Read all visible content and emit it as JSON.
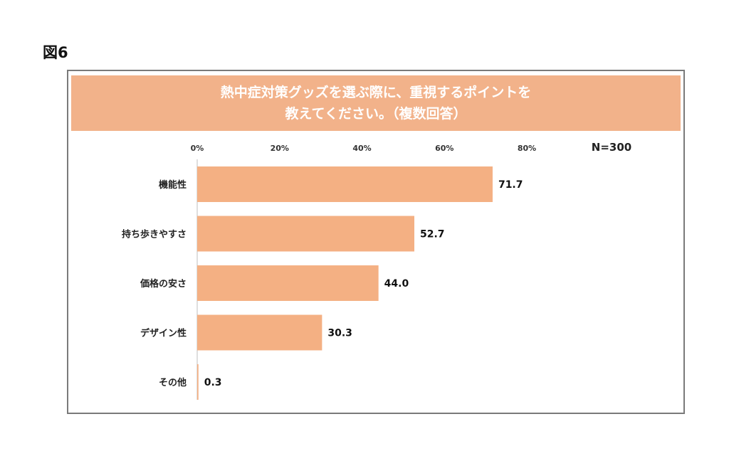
{
  "figure_label": "図6",
  "colors": {
    "bar": "#f4b083",
    "title_band": "#f2b28a",
    "frame": "#7a7a7a"
  },
  "chart_data": {
    "type": "bar",
    "orientation": "horizontal",
    "title_line1": "熱中症対策グッズを選ぶ際に、重視するポイントを",
    "title_line2": "教えてください。（複数回答）",
    "sample_size": "N=300",
    "categories": [
      "機能性",
      "持ち歩きやすさ",
      "価格の安さ",
      "デザイン性",
      "その他"
    ],
    "values": [
      71.7,
      52.7,
      44.0,
      30.3,
      0.3
    ],
    "value_labels": [
      "71.7",
      "52.7",
      "44.0",
      "30.3",
      "0.3"
    ],
    "xticks": [
      "0%",
      "20%",
      "40%",
      "60%",
      "80%"
    ],
    "xlim": [
      0,
      80
    ],
    "grid": false,
    "legend": "none"
  }
}
